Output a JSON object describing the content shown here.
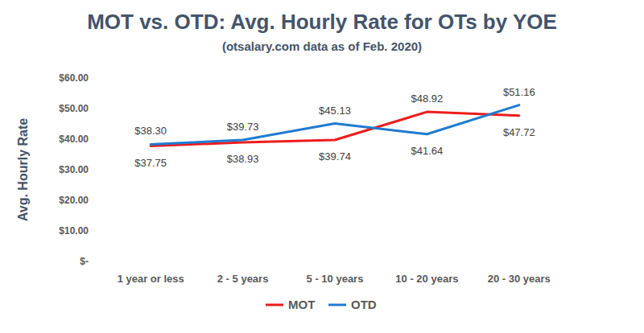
{
  "chart_data": {
    "type": "line",
    "title": "MOT vs. OTD: Avg. Hourly Rate for OTs by YOE",
    "subtitle": "(otsalary.com data as of Feb. 2020)",
    "y_label": "Avg. Hourly Rate",
    "categories": [
      "1 year or less",
      "2 - 5 years",
      "5 - 10 years",
      "10 - 20 years",
      "20 - 30 years"
    ],
    "series": [
      {
        "name": "MOT",
        "color": "#ee1c1c",
        "values": [
          37.75,
          38.93,
          39.74,
          48.92,
          47.72
        ],
        "value_labels": [
          "$37.75",
          "$38.93",
          "$39.74",
          "$48.92",
          "$47.72"
        ]
      },
      {
        "name": "OTD",
        "color": "#1f7bd0",
        "values": [
          38.3,
          39.73,
          45.13,
          41.64,
          51.16
        ],
        "value_labels": [
          "$38.30",
          "$39.73",
          "$45.13",
          "$41.64",
          "$51.16"
        ]
      }
    ],
    "ylim": [
      0,
      60
    ],
    "yticks": [
      {
        "value": 0,
        "label": "$-"
      },
      {
        "value": 10,
        "label": "$10.00"
      },
      {
        "value": 20,
        "label": "$20.00"
      },
      {
        "value": 30,
        "label": "$30.00"
      },
      {
        "value": 40,
        "label": "$40.00"
      },
      {
        "value": 50,
        "label": "$50.00"
      },
      {
        "value": 60,
        "label": "$60.00"
      }
    ],
    "grid": false,
    "legend": "bottom",
    "data_labels": true
  }
}
